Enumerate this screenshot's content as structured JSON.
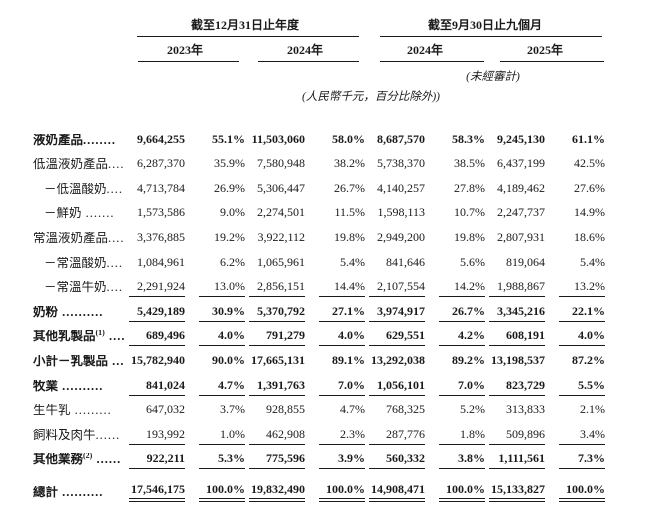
{
  "header": {
    "group_fy": "截至12月31日止年度",
    "group_9m": "截至9月30日止九個月",
    "col_2023": "2023年",
    "col_2024": "2024年",
    "col_9m_2024": "2024年",
    "col_9m_2025": "2025年",
    "unaudited": "(未經審計)",
    "units_note": "(人民幣千元，百分比除外))"
  },
  "rows": [
    {
      "label": "液奶產品",
      "sup": "",
      "dots": "........",
      "indent": false,
      "bold": true,
      "rule": "none",
      "extra_gap": false,
      "values": [
        "9,664,255",
        "55.1%",
        "11,503,060",
        "58.0%",
        "8,687,570",
        "58.3%",
        "9,245,130",
        "61.1%"
      ]
    },
    {
      "label": "低溫液奶產品",
      "sup": "",
      "dots": "....",
      "indent": false,
      "bold": false,
      "rule": "none",
      "extra_gap": false,
      "values": [
        "6,287,370",
        "35.9%",
        "7,580,948",
        "38.2%",
        "5,738,370",
        "38.5%",
        "6,437,199",
        "42.5%"
      ]
    },
    {
      "label": "－低溫酸奶",
      "sup": "",
      "dots": "....",
      "indent": true,
      "bold": false,
      "rule": "none",
      "extra_gap": false,
      "values": [
        "4,713,784",
        "26.9%",
        "5,306,447",
        "26.7%",
        "4,140,257",
        "27.8%",
        "4,189,462",
        "27.6%"
      ]
    },
    {
      "label": "－鮮奶",
      "sup": "",
      "dots": " .......",
      "indent": true,
      "bold": false,
      "rule": "none",
      "extra_gap": false,
      "values": [
        "1,573,586",
        "9.0%",
        "2,274,501",
        "11.5%",
        "1,598,113",
        "10.7%",
        "2,247,737",
        "14.9%"
      ]
    },
    {
      "label": "常溫液奶產品",
      "sup": "",
      "dots": "....",
      "indent": false,
      "bold": false,
      "rule": "none",
      "extra_gap": false,
      "values": [
        "3,376,885",
        "19.2%",
        "3,922,112",
        "19.8%",
        "2,949,200",
        "19.8%",
        "2,807,931",
        "18.6%"
      ]
    },
    {
      "label": "－常溫酸奶",
      "sup": "",
      "dots": "....",
      "indent": true,
      "bold": false,
      "rule": "none",
      "extra_gap": false,
      "values": [
        "1,084,961",
        "6.2%",
        "1,065,961",
        "5.4%",
        "841,646",
        "5.6%",
        "819,064",
        "5.4%"
      ]
    },
    {
      "label": "－常溫牛奶",
      "sup": "",
      "dots": "....",
      "indent": true,
      "bold": false,
      "rule": "single",
      "extra_gap": false,
      "values": [
        "2,291,924",
        "13.0%",
        "2,856,151",
        "14.4%",
        "2,107,554",
        "14.2%",
        "1,988,867",
        "13.2%"
      ]
    },
    {
      "label": "奶粉",
      "sup": "",
      "dots": " ..........",
      "indent": false,
      "bold": true,
      "rule": "single",
      "extra_gap": false,
      "values": [
        "5,429,189",
        "30.9%",
        "5,370,792",
        "27.1%",
        "3,974,917",
        "26.7%",
        "3,345,216",
        "22.1%"
      ]
    },
    {
      "label": "其他乳製品",
      "sup": "(1)",
      "dots": " ....",
      "indent": false,
      "bold": true,
      "rule": "single",
      "extra_gap": false,
      "values": [
        "689,496",
        "4.0%",
        "791,279",
        "4.0%",
        "629,551",
        "4.2%",
        "608,191",
        "4.0%"
      ]
    },
    {
      "label": "小計－乳製品",
      "sup": "",
      "dots": " ...",
      "indent": false,
      "bold": true,
      "rule": "none",
      "extra_gap": false,
      "values": [
        "15,782,940",
        "90.0%",
        "17,665,131",
        "89.1%",
        "13,292,038",
        "89.2%",
        "13,198,537",
        "87.2%"
      ]
    },
    {
      "label": "牧業",
      "sup": "",
      "dots": " ..........",
      "indent": false,
      "bold": true,
      "rule": "single",
      "extra_gap": false,
      "values": [
        "841,024",
        "4.7%",
        "1,391,763",
        "7.0%",
        "1,056,101",
        "7.0%",
        "823,729",
        "5.5%"
      ]
    },
    {
      "label": "生牛乳",
      "sup": "",
      "dots": " .........",
      "indent": false,
      "bold": false,
      "rule": "none",
      "extra_gap": false,
      "values": [
        "647,032",
        "3.7%",
        "928,855",
        "4.7%",
        "768,325",
        "5.2%",
        "313,833",
        "2.1%"
      ]
    },
    {
      "label": "飼料及肉牛",
      "sup": "",
      "dots": "......",
      "indent": false,
      "bold": false,
      "rule": "single",
      "extra_gap": false,
      "values": [
        "193,992",
        "1.0%",
        "462,908",
        "2.3%",
        "287,776",
        "1.8%",
        "509,896",
        "3.4%"
      ]
    },
    {
      "label": "其他業務",
      "sup": "(2)",
      "dots": " ......",
      "indent": false,
      "bold": true,
      "rule": "single",
      "extra_gap": false,
      "values": [
        "922,211",
        "5.3%",
        "775,596",
        "3.9%",
        "560,332",
        "3.8%",
        "1,111,561",
        "7.3%"
      ]
    },
    {
      "label": "總計",
      "sup": "",
      "dots": " ..........",
      "indent": false,
      "bold": true,
      "rule": "double",
      "extra_gap": true,
      "values": [
        "17,546,175",
        "100.0%",
        "19,832,490",
        "100.0%",
        "14,908,471",
        "100.0%",
        "15,133,827",
        "100.0%"
      ]
    }
  ]
}
